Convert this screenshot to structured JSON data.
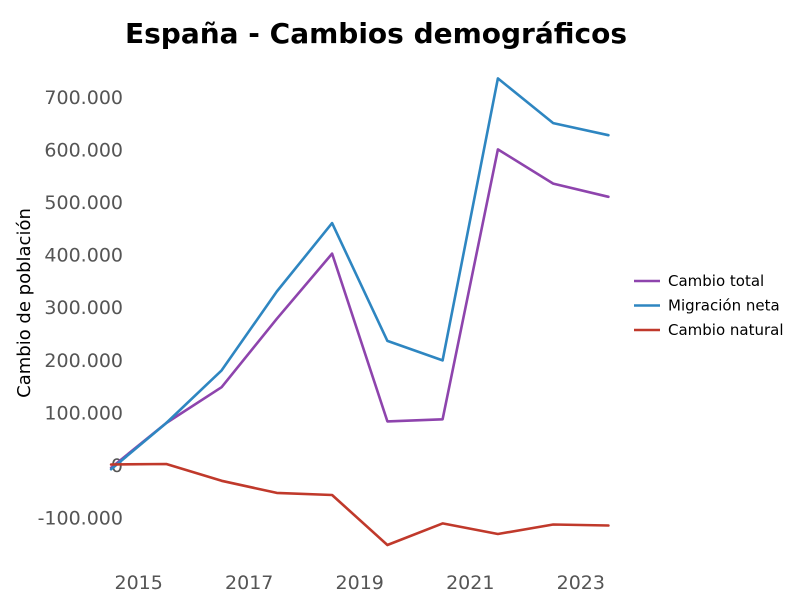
{
  "chart_data": {
    "type": "line",
    "title": "España - Cambios demográficos",
    "xlabel": "",
    "ylabel": "Cambio de población",
    "x": [
      2014.5,
      2015.5,
      2016.5,
      2017.5,
      2018.5,
      2019.5,
      2020.5,
      2021.5,
      2022.5,
      2023.5
    ],
    "x_ticks": [
      2015,
      2017,
      2019,
      2021,
      2023
    ],
    "x_tick_labels": [
      "2015",
      "2017",
      "2019",
      "2021",
      "2023"
    ],
    "xlim": [
      2014.3,
      2023.8
    ],
    "ylim": [
      -190000,
      770000
    ],
    "y_ticks": [
      -100000,
      0,
      100000,
      200000,
      300000,
      400000,
      500000,
      600000,
      700000
    ],
    "y_tick_labels": [
      "-100.000",
      "0",
      "100.000",
      "200.000",
      "300.000",
      "400.000",
      "500.000",
      "600.000",
      "700.000"
    ],
    "grid": false,
    "legend_position": "right",
    "series": [
      {
        "name": "Cambio total",
        "color": "#8e44ad",
        "values": [
          -5000,
          80000,
          148000,
          278000,
          402000,
          83000,
          87000,
          600000,
          535000,
          510000
        ]
      },
      {
        "name": "Migración neta",
        "color": "#2e86c1",
        "values": [
          -8000,
          80000,
          180000,
          330000,
          460000,
          236000,
          199000,
          735000,
          650000,
          627000
        ]
      },
      {
        "name": "Cambio natural",
        "color": "#c0392b",
        "values": [
          1000,
          2000,
          -30000,
          -53000,
          -57000,
          -152000,
          -111000,
          -131000,
          -113000,
          -115000
        ]
      }
    ]
  }
}
